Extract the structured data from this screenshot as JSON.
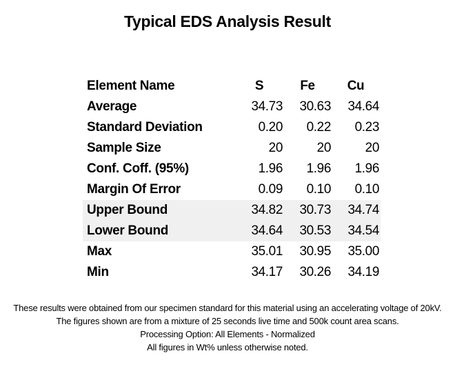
{
  "title": "Typical EDS Analysis Result",
  "table": {
    "header_label": "Element Name",
    "columns": [
      "S",
      "Fe",
      "Cu"
    ],
    "rows": [
      {
        "label": "Average",
        "values": [
          "34.73",
          "30.63",
          "34.64"
        ],
        "shaded": false
      },
      {
        "label": "Standard Deviation",
        "values": [
          "0.20",
          "0.22",
          "0.23"
        ],
        "shaded": false
      },
      {
        "label": "Sample Size",
        "values": [
          "20",
          "20",
          "20"
        ],
        "shaded": false
      },
      {
        "label": "Conf. Coff. (95%)",
        "values": [
          "1.96",
          "1.96",
          "1.96"
        ],
        "shaded": false
      },
      {
        "label": "Margin Of Error",
        "values": [
          "0.09",
          "0.10",
          "0.10"
        ],
        "shaded": false
      },
      {
        "label": "Upper Bound",
        "values": [
          "34.82",
          "30.73",
          "34.74"
        ],
        "shaded": true
      },
      {
        "label": "Lower Bound",
        "values": [
          "34.64",
          "30.53",
          "34.54"
        ],
        "shaded": true
      },
      {
        "label": "Max",
        "values": [
          "35.01",
          "30.95",
          "35.00"
        ],
        "shaded": false
      },
      {
        "label": "Min",
        "values": [
          "34.17",
          "30.26",
          "34.19"
        ],
        "shaded": false
      }
    ]
  },
  "notes": [
    "These results were obtained from our specimen standard for this material using an accelerating voltage of 20kV.",
    "The figures shown are from a mixture of 25 seconds live time and 500k count area scans.",
    "Processing Option: All Elements - Normalized",
    "All figures in Wt% unless otherwise noted."
  ],
  "colors": {
    "shaded_row_background": "#f0f0f0",
    "text": "#000000"
  }
}
